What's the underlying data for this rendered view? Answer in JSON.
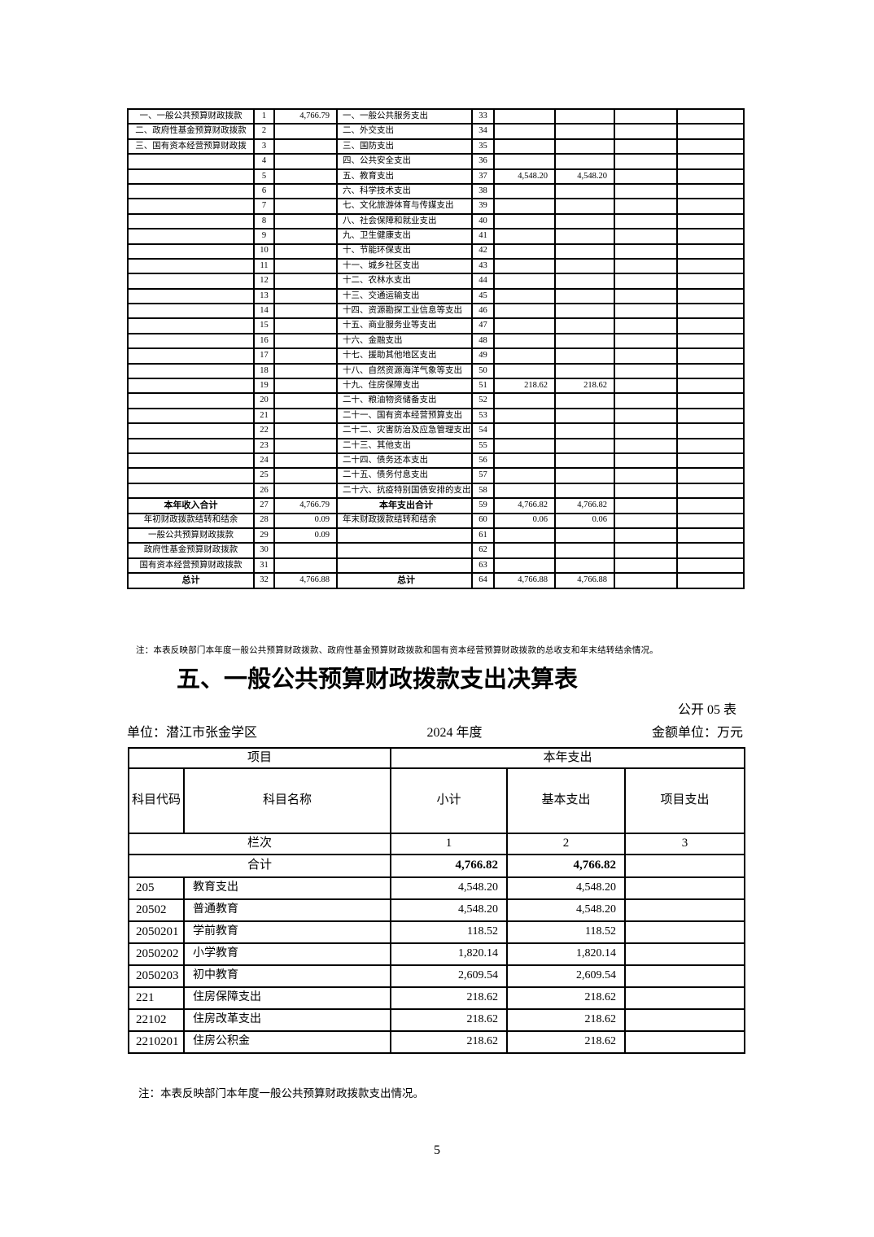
{
  "page_number": "5",
  "table1": {
    "note": "注：本表反映部门本年度一般公共预算财政拨款、政府性基金预算财政拨款和国有资本经营预算财政拨款的总收支和年末结转结余情况。",
    "rows": [
      {
        "l": "一、一般公共预算财政拨款",
        "n1": "1",
        "v1": "4,766.79",
        "r": "一、一般公共服务支出",
        "n2": "33",
        "v2": "",
        "v3": ""
      },
      {
        "l": "二、政府性基金预算财政拨款",
        "n1": "2",
        "v1": "",
        "r": "二、外交支出",
        "n2": "34",
        "v2": "",
        "v3": ""
      },
      {
        "l": "三、国有资本经营预算财政拨",
        "n1": "3",
        "v1": "",
        "r": "三、国防支出",
        "n2": "35",
        "v2": "",
        "v3": ""
      },
      {
        "l": "",
        "n1": "4",
        "v1": "",
        "r": "四、公共安全支出",
        "n2": "36",
        "v2": "",
        "v3": ""
      },
      {
        "l": "",
        "n1": "5",
        "v1": "",
        "r": "五、教育支出",
        "n2": "37",
        "v2": "4,548.20",
        "v3": "4,548.20"
      },
      {
        "l": "",
        "n1": "6",
        "v1": "",
        "r": "六、科学技术支出",
        "n2": "38",
        "v2": "",
        "v3": ""
      },
      {
        "l": "",
        "n1": "7",
        "v1": "",
        "r": "七、文化旅游体育与传媒支出",
        "n2": "39",
        "v2": "",
        "v3": ""
      },
      {
        "l": "",
        "n1": "8",
        "v1": "",
        "r": "八、社会保障和就业支出",
        "n2": "40",
        "v2": "",
        "v3": ""
      },
      {
        "l": "",
        "n1": "9",
        "v1": "",
        "r": "九、卫生健康支出",
        "n2": "41",
        "v2": "",
        "v3": ""
      },
      {
        "l": "",
        "n1": "10",
        "v1": "",
        "r": "十、节能环保支出",
        "n2": "42",
        "v2": "",
        "v3": ""
      },
      {
        "l": "",
        "n1": "11",
        "v1": "",
        "r": "十一、城乡社区支出",
        "n2": "43",
        "v2": "",
        "v3": ""
      },
      {
        "l": "",
        "n1": "12",
        "v1": "",
        "r": "十二、农林水支出",
        "n2": "44",
        "v2": "",
        "v3": ""
      },
      {
        "l": "",
        "n1": "13",
        "v1": "",
        "r": "十三、交通运输支出",
        "n2": "45",
        "v2": "",
        "v3": ""
      },
      {
        "l": "",
        "n1": "14",
        "v1": "",
        "r": "十四、资源勘探工业信息等支出",
        "n2": "46",
        "v2": "",
        "v3": ""
      },
      {
        "l": "",
        "n1": "15",
        "v1": "",
        "r": "十五、商业服务业等支出",
        "n2": "47",
        "v2": "",
        "v3": ""
      },
      {
        "l": "",
        "n1": "16",
        "v1": "",
        "r": "十六、金融支出",
        "n2": "48",
        "v2": "",
        "v3": ""
      },
      {
        "l": "",
        "n1": "17",
        "v1": "",
        "r": "十七、援助其他地区支出",
        "n2": "49",
        "v2": "",
        "v3": ""
      },
      {
        "l": "",
        "n1": "18",
        "v1": "",
        "r": "十八、自然资源海洋气象等支出",
        "n2": "50",
        "v2": "",
        "v3": ""
      },
      {
        "l": "",
        "n1": "19",
        "v1": "",
        "r": "十九、住房保障支出",
        "n2": "51",
        "v2": "218.62",
        "v3": "218.62"
      },
      {
        "l": "",
        "n1": "20",
        "v1": "",
        "r": "二十、粮油物资储备支出",
        "n2": "52",
        "v2": "",
        "v3": ""
      },
      {
        "l": "",
        "n1": "21",
        "v1": "",
        "r": "二十一、国有资本经营预算支出",
        "n2": "53",
        "v2": "",
        "v3": ""
      },
      {
        "l": "",
        "n1": "22",
        "v1": "",
        "r": "二十二、灾害防治及应急管理支出",
        "n2": "54",
        "v2": "",
        "v3": ""
      },
      {
        "l": "",
        "n1": "23",
        "v1": "",
        "r": "二十三、其他支出",
        "n2": "55",
        "v2": "",
        "v3": ""
      },
      {
        "l": "",
        "n1": "24",
        "v1": "",
        "r": "二十四、债务还本支出",
        "n2": "56",
        "v2": "",
        "v3": ""
      },
      {
        "l": "",
        "n1": "25",
        "v1": "",
        "r": "二十五、债务付息支出",
        "n2": "57",
        "v2": "",
        "v3": ""
      },
      {
        "l": "",
        "n1": "26",
        "v1": "",
        "r": "二十六、抗疫特别国债安排的支出",
        "n2": "58",
        "v2": "",
        "v3": ""
      },
      {
        "l": "本年收入合计",
        "lb": true,
        "n1": "27",
        "v1": "4,766.79",
        "r": "本年支出合计",
        "rb": true,
        "n2": "59",
        "v2": "4,766.82",
        "v3": "4,766.82"
      },
      {
        "l": "年初财政拨款结转和结余",
        "n1": "28",
        "v1": "0.09",
        "r": "年末财政拨款结转和结余",
        "n2": "60",
        "v2": "0.06",
        "v3": "0.06"
      },
      {
        "l": "一般公共预算财政拨款",
        "n1": "29",
        "v1": "0.09",
        "r": "",
        "n2": "61",
        "v2": "",
        "v3": ""
      },
      {
        "l": "政府性基金预算财政拨款",
        "n1": "30",
        "v1": "",
        "r": "",
        "n2": "62",
        "v2": "",
        "v3": ""
      },
      {
        "l": "国有资本经营预算财政拨款",
        "n1": "31",
        "v1": "",
        "r": "",
        "n2": "63",
        "v2": "",
        "v3": ""
      },
      {
        "l": "总计",
        "lb": true,
        "n1": "32",
        "v1": "4,766.88",
        "r": "总计",
        "rb": true,
        "n2": "64",
        "v2": "4,766.88",
        "v3": "4,766.88"
      }
    ]
  },
  "section5": {
    "title": "五、一般公共预算财政拨款支出决算表",
    "table_code": "公开 05 表",
    "unit": "单位：潜江市张金学区",
    "year": "2024 年度",
    "amount_unit": "金额单位：万元",
    "header": {
      "project": "项目",
      "current_year_expenditure": "本年支出",
      "subject_code": "科目代码",
      "subject_name": "科目名称",
      "subtotal": "小计",
      "basic_expenditure": "基本支出",
      "project_expenditure": "项目支出"
    },
    "lanci": {
      "label": "栏次",
      "col1": "1",
      "col2": "2",
      "col3": "3"
    },
    "total_row": {
      "label": "合计",
      "subtotal": "4,766.82",
      "basic": "4,766.82",
      "project": ""
    },
    "rows": [
      {
        "code": "205",
        "name": "教育支出",
        "subtotal": "4,548.20",
        "basic": "4,548.20",
        "project": ""
      },
      {
        "code": "20502",
        "name": "普通教育",
        "subtotal": "4,548.20",
        "basic": "4,548.20",
        "project": ""
      },
      {
        "code": "2050201",
        "name": "学前教育",
        "subtotal": "118.52",
        "basic": "118.52",
        "project": ""
      },
      {
        "code": "2050202",
        "name": "小学教育",
        "subtotal": "1,820.14",
        "basic": "1,820.14",
        "project": ""
      },
      {
        "code": "2050203",
        "name": "初中教育",
        "subtotal": "2,609.54",
        "basic": "2,609.54",
        "project": ""
      },
      {
        "code": "221",
        "name": "住房保障支出",
        "subtotal": "218.62",
        "basic": "218.62",
        "project": ""
      },
      {
        "code": "22102",
        "name": "住房改革支出",
        "subtotal": "218.62",
        "basic": "218.62",
        "project": ""
      },
      {
        "code": "2210201",
        "name": "住房公积金",
        "subtotal": "218.62",
        "basic": "218.62",
        "project": ""
      }
    ],
    "note": "注：本表反映部门本年度一般公共预算财政拨款支出情况。"
  }
}
